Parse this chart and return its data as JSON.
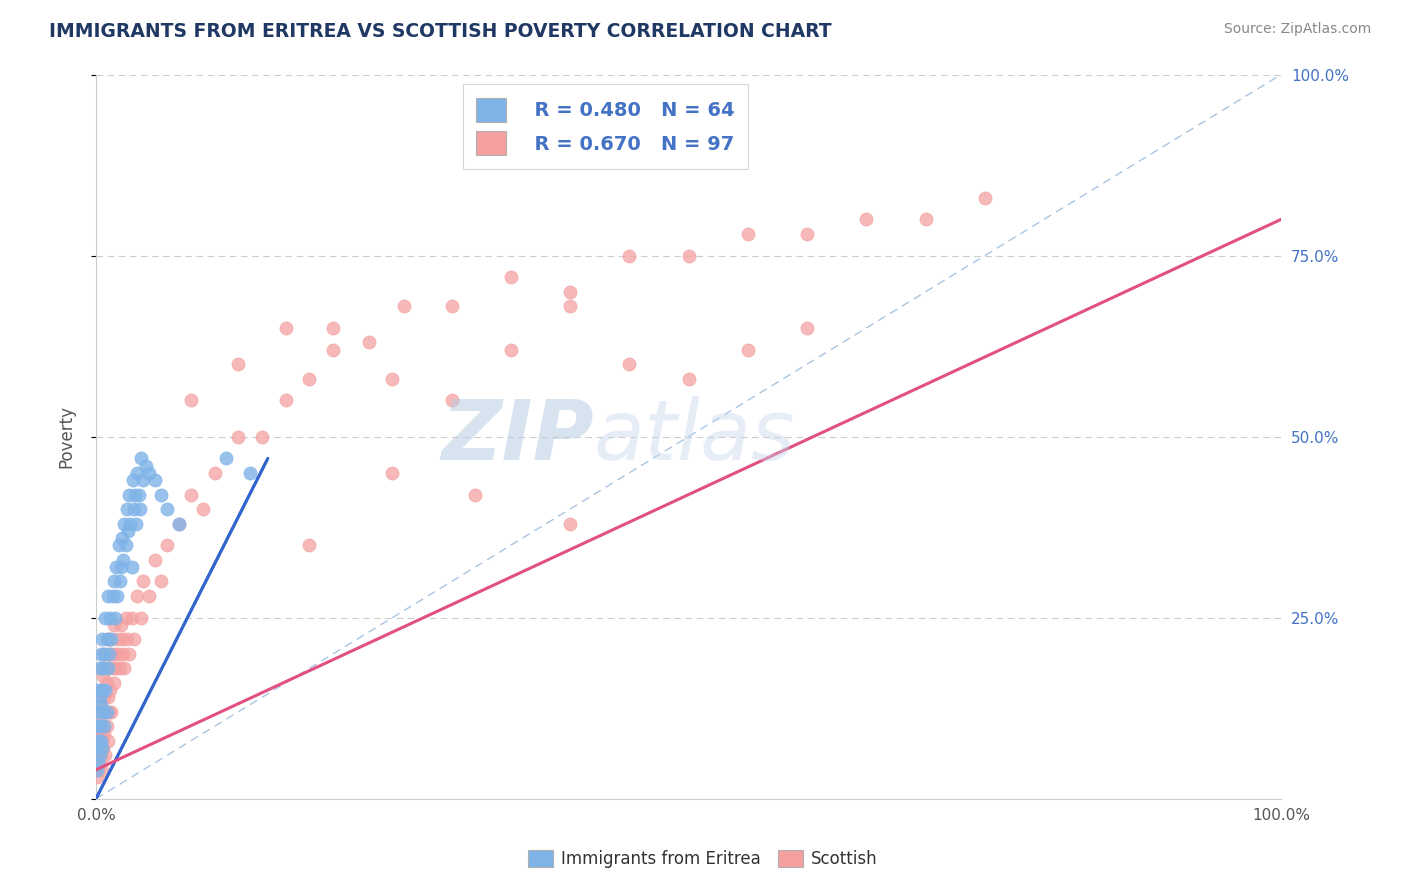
{
  "title": "IMMIGRANTS FROM ERITREA VS SCOTTISH POVERTY CORRELATION CHART",
  "source": "Source: ZipAtlas.com",
  "ylabel": "Poverty",
  "watermark_zip": "ZIP",
  "watermark_atlas": "atlas",
  "xmin": 0.0,
  "xmax": 1.0,
  "ymin": 0.0,
  "ymax": 1.0,
  "series1_color": "#7fb3e8",
  "series1_edge": "#7fb3e8",
  "series2_color": "#f4a0a0",
  "series2_edge": "#f4a0a0",
  "line1_color": "#3366cc",
  "line2_color": "#e05080",
  "legend_R1": "R = 0.480",
  "legend_N1": "N = 64",
  "legend_R2": "R = 0.670",
  "legend_N2": "N = 97",
  "title_color": "#1f3864",
  "grid_color": "#cccccc",
  "watermark_color_zip": "#b8cce4",
  "watermark_color_atlas": "#c8d8ee",
  "blue_scatter_x": [
    0.001,
    0.001,
    0.001,
    0.002,
    0.002,
    0.002,
    0.002,
    0.003,
    0.003,
    0.003,
    0.003,
    0.004,
    0.004,
    0.004,
    0.005,
    0.005,
    0.005,
    0.006,
    0.006,
    0.007,
    0.007,
    0.008,
    0.008,
    0.009,
    0.009,
    0.01,
    0.01,
    0.011,
    0.012,
    0.013,
    0.014,
    0.015,
    0.016,
    0.017,
    0.018,
    0.019,
    0.02,
    0.021,
    0.022,
    0.023,
    0.024,
    0.025,
    0.026,
    0.027,
    0.028,
    0.029,
    0.03,
    0.031,
    0.032,
    0.033,
    0.034,
    0.035,
    0.036,
    0.037,
    0.038,
    0.04,
    0.042,
    0.045,
    0.05,
    0.055,
    0.06,
    0.07,
    0.11,
    0.13
  ],
  "blue_scatter_y": [
    0.04,
    0.07,
    0.1,
    0.05,
    0.08,
    0.12,
    0.15,
    0.06,
    0.1,
    0.14,
    0.18,
    0.08,
    0.13,
    0.2,
    0.07,
    0.15,
    0.22,
    0.12,
    0.18,
    0.1,
    0.2,
    0.15,
    0.25,
    0.12,
    0.22,
    0.18,
    0.28,
    0.2,
    0.25,
    0.22,
    0.28,
    0.3,
    0.25,
    0.32,
    0.28,
    0.35,
    0.3,
    0.32,
    0.36,
    0.33,
    0.38,
    0.35,
    0.4,
    0.37,
    0.42,
    0.38,
    0.32,
    0.44,
    0.4,
    0.42,
    0.38,
    0.45,
    0.42,
    0.4,
    0.47,
    0.44,
    0.46,
    0.45,
    0.44,
    0.42,
    0.4,
    0.38,
    0.47,
    0.45
  ],
  "pink_scatter_x": [
    0.001,
    0.001,
    0.001,
    0.002,
    0.002,
    0.002,
    0.003,
    0.003,
    0.003,
    0.004,
    0.004,
    0.004,
    0.005,
    0.005,
    0.005,
    0.005,
    0.006,
    0.006,
    0.006,
    0.007,
    0.007,
    0.007,
    0.008,
    0.008,
    0.008,
    0.009,
    0.009,
    0.01,
    0.01,
    0.01,
    0.011,
    0.011,
    0.012,
    0.012,
    0.013,
    0.013,
    0.014,
    0.015,
    0.015,
    0.016,
    0.017,
    0.018,
    0.019,
    0.02,
    0.021,
    0.022,
    0.023,
    0.024,
    0.025,
    0.026,
    0.028,
    0.03,
    0.032,
    0.035,
    0.038,
    0.04,
    0.045,
    0.05,
    0.055,
    0.06,
    0.07,
    0.08,
    0.09,
    0.1,
    0.12,
    0.14,
    0.16,
    0.18,
    0.2,
    0.23,
    0.26,
    0.3,
    0.35,
    0.4,
    0.45,
    0.5,
    0.55,
    0.6,
    0.65,
    0.7,
    0.75,
    0.08,
    0.12,
    0.16,
    0.2,
    0.25,
    0.3,
    0.35,
    0.4,
    0.45,
    0.5,
    0.55,
    0.6,
    0.18,
    0.25,
    0.32,
    0.4
  ],
  "pink_scatter_y": [
    0.03,
    0.06,
    0.09,
    0.04,
    0.07,
    0.11,
    0.05,
    0.09,
    0.13,
    0.06,
    0.1,
    0.15,
    0.04,
    0.08,
    0.12,
    0.18,
    0.07,
    0.12,
    0.17,
    0.09,
    0.14,
    0.2,
    0.06,
    0.12,
    0.18,
    0.1,
    0.16,
    0.08,
    0.14,
    0.22,
    0.12,
    0.18,
    0.15,
    0.22,
    0.12,
    0.2,
    0.18,
    0.16,
    0.24,
    0.2,
    0.18,
    0.22,
    0.2,
    0.18,
    0.24,
    0.22,
    0.2,
    0.18,
    0.25,
    0.22,
    0.2,
    0.25,
    0.22,
    0.28,
    0.25,
    0.3,
    0.28,
    0.33,
    0.3,
    0.35,
    0.38,
    0.42,
    0.4,
    0.45,
    0.5,
    0.5,
    0.55,
    0.58,
    0.62,
    0.63,
    0.68,
    0.68,
    0.72,
    0.7,
    0.75,
    0.75,
    0.78,
    0.78,
    0.8,
    0.8,
    0.83,
    0.55,
    0.6,
    0.65,
    0.65,
    0.58,
    0.55,
    0.62,
    0.68,
    0.6,
    0.58,
    0.62,
    0.65,
    0.35,
    0.45,
    0.42,
    0.38
  ],
  "blue_line_x0": 0.0,
  "blue_line_y0": 0.0,
  "blue_line_x1": 0.145,
  "blue_line_y1": 0.47,
  "pink_line_x0": 0.0,
  "pink_line_y0": 0.04,
  "pink_line_x1": 1.0,
  "pink_line_y1": 0.8
}
